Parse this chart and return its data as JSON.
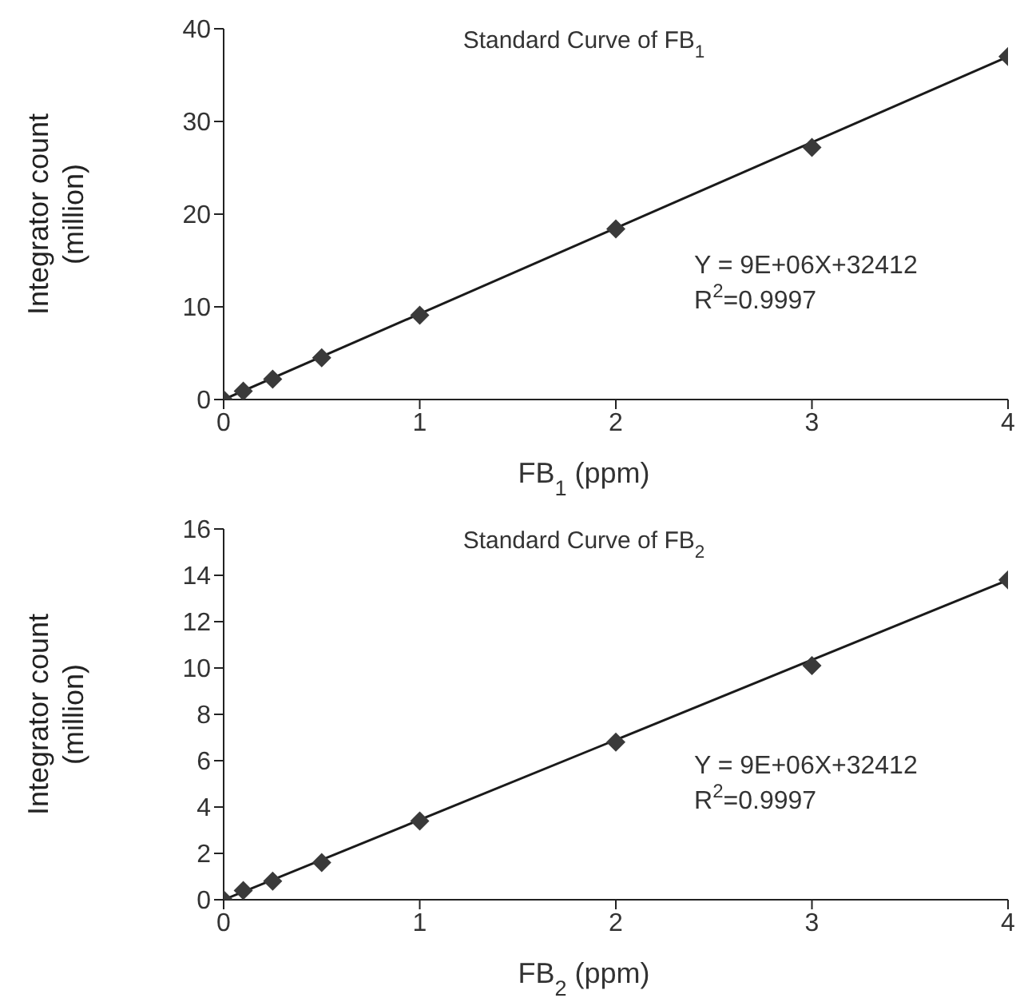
{
  "chart_data": [
    {
      "type": "scatter",
      "title": "Standard Curve of FB$_{1}$",
      "xlabel": "FB$_{1}$ (ppm)",
      "ylabel": "Integrator count\n(million)",
      "annotations": [
        "Y = 9E+06X+32412",
        "R$^{2}$=0.9997"
      ],
      "marker": "diamond",
      "grid": false,
      "legend": false,
      "xlim": [
        0,
        4
      ],
      "xticks": [
        0,
        1,
        2,
        3,
        4
      ],
      "ylim": [
        0,
        40
      ],
      "yticks": [
        0,
        10,
        20,
        30,
        40
      ],
      "series": [
        {
          "color": "#3a3a3a",
          "x": [
            0,
            0.1,
            0.25,
            0.5,
            1,
            2,
            3,
            4
          ],
          "values": [
            0,
            0.9,
            2.2,
            4.5,
            9.1,
            18.4,
            27.2,
            37
          ]
        },
        {
          "type": "line",
          "marker": "none",
          "color": "#1a1a1a",
          "x": [
            0,
            4
          ],
          "values": [
            0,
            37
          ]
        }
      ]
    },
    {
      "type": "scatter",
      "title": "Standard Curve of FB$_{2}$",
      "xlabel": "FB$_{2}$ (ppm)",
      "ylabel": "Integrator count\n(million)",
      "annotations": [
        "Y = 9E+06X+32412",
        "R$^{2}$=0.9997"
      ],
      "marker": "diamond",
      "grid": false,
      "legend": false,
      "xlim": [
        0,
        4
      ],
      "xticks": [
        0,
        1,
        2,
        3,
        4
      ],
      "ylim": [
        0,
        16
      ],
      "yticks": [
        0,
        2,
        4,
        6,
        8,
        10,
        12,
        14,
        16
      ],
      "series": [
        {
          "color": "#3a3a3a",
          "x": [
            0,
            0.1,
            0.25,
            0.5,
            1,
            2,
            3,
            4
          ],
          "values": [
            0,
            0.4,
            0.8,
            1.6,
            3.4,
            6.8,
            10.1,
            13.8
          ]
        },
        {
          "type": "line",
          "marker": "none",
          "color": "#1a1a1a",
          "x": [
            0,
            4
          ],
          "values": [
            0,
            13.8
          ]
        }
      ]
    }
  ]
}
